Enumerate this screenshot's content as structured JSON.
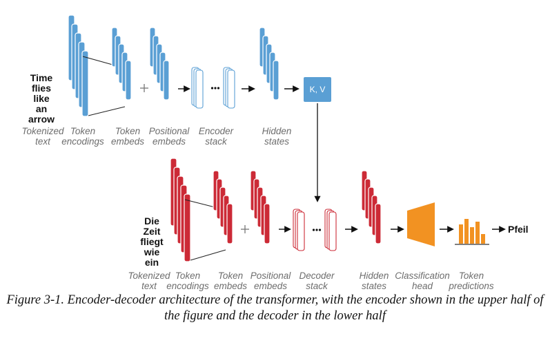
{
  "encoder": {
    "input_text": "Time\nflies\nlike\nan\narrow",
    "labels": {
      "tokenized_text": "Tokenized\ntext",
      "token_encodings": "Token\nencodings",
      "token_embeds": "Token\nembeds",
      "positional_embeds": "Positional\nembeds",
      "encoder_stack": "Encoder\nstack",
      "hidden_states": "Hidden\nstates"
    },
    "kv_label": "K, V",
    "color": "#5a9fd4"
  },
  "decoder": {
    "input_text": "Die\nZeit\nfliegt\nwie\nein",
    "labels": {
      "tokenized_text": "Tokenized\ntext",
      "token_encodings": "Token\nencodings",
      "token_embeds": "Token\nembeds",
      "positional_embeds": "Positional\nembeds",
      "decoder_stack": "Decoder\nstack",
      "hidden_states": "Hidden\nstates",
      "classification_head": "Classification\nhead",
      "token_predictions": "Token\npredictions"
    },
    "output_token": "Pfeil",
    "color": "#cc2a36",
    "head_color": "#f29222"
  },
  "caption": "Figure 3-1. Encoder-decoder architecture of the transformer, with the encoder shown in the upper half of the figure and the decoder in the lower half"
}
